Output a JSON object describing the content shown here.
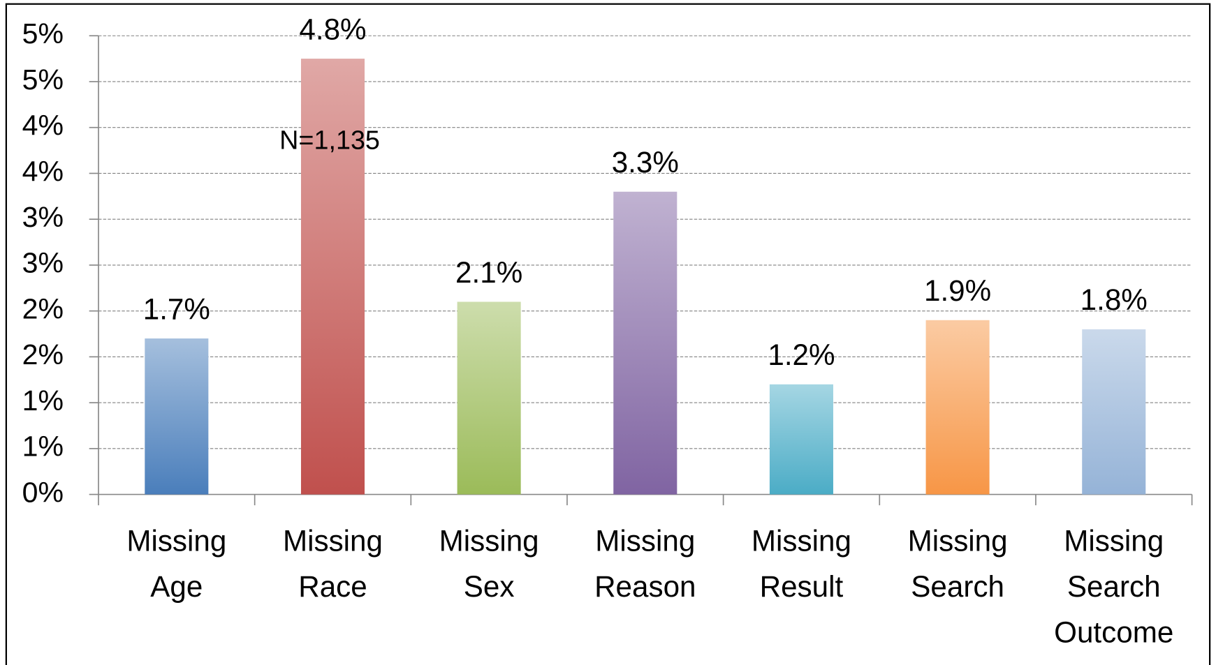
{
  "chart_data": {
    "type": "bar",
    "annotation": "N=1,135",
    "categories": [
      "Missing Age",
      "Missing Race",
      "Missing Sex",
      "Missing Reason",
      "Missing Result",
      "Missing Search",
      "Missing Search Outcome"
    ],
    "values": [
      1.7,
      4.75,
      2.1,
      3.3,
      1.2,
      1.9,
      1.8
    ],
    "value_labels": [
      "1.7%",
      "4.8%",
      "2.1%",
      "3.3%",
      "1.2%",
      "1.9%",
      "1.8%"
    ],
    "colors": [
      "#4a7ebb",
      "#c0504d",
      "#9bbb59",
      "#8064a2",
      "#4bacc6",
      "#f79646",
      "#95b3d7"
    ],
    "ylim": [
      0,
      5
    ],
    "yticks": [
      {
        "value": 0,
        "label": "0%"
      },
      {
        "value": 0.5,
        "label": "1%"
      },
      {
        "value": 1,
        "label": "1%"
      },
      {
        "value": 1.5,
        "label": "2%"
      },
      {
        "value": 2,
        "label": "2%"
      },
      {
        "value": 2.5,
        "label": "3%"
      },
      {
        "value": 3,
        "label": "3%"
      },
      {
        "value": 3.5,
        "label": "4%"
      },
      {
        "value": 4,
        "label": "4%"
      },
      {
        "value": 4.5,
        "label": "5%"
      },
      {
        "value": 5,
        "label": "5%"
      }
    ],
    "grid": true
  }
}
